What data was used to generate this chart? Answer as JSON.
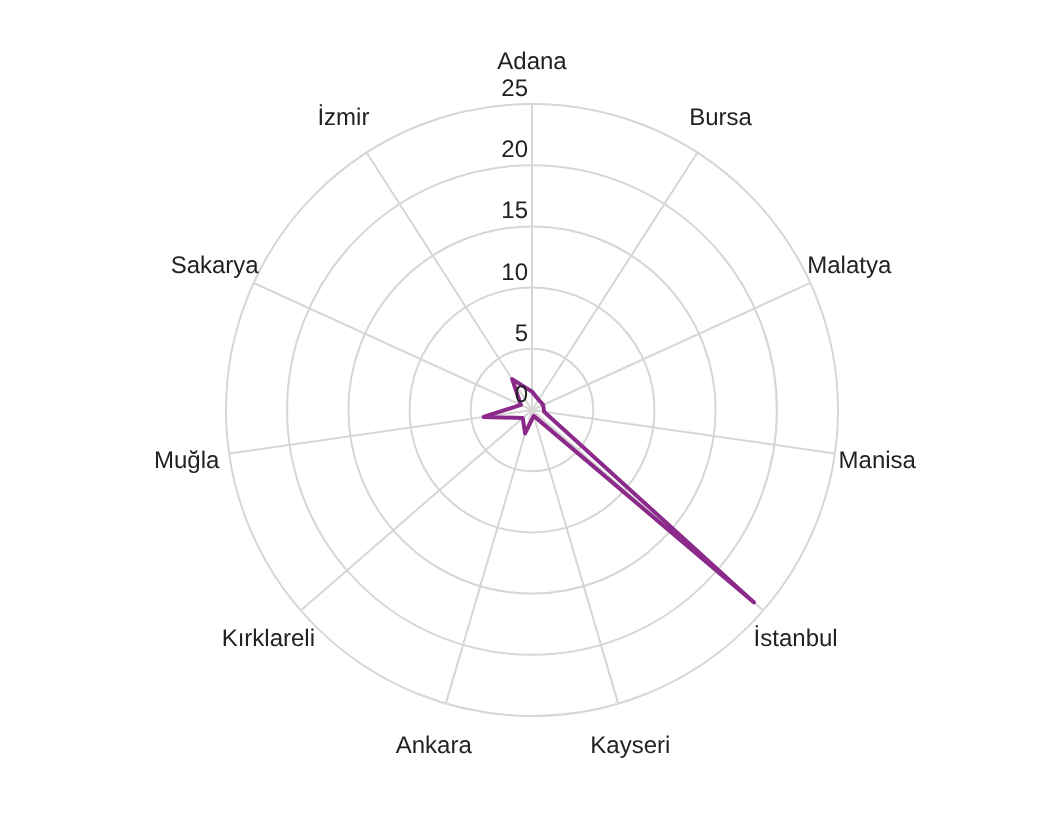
{
  "chart_data": {
    "type": "radar",
    "categories": [
      "Adana",
      "Bursa",
      "Malatya",
      "Manisa",
      "İstanbul",
      "Kayseri",
      "Ankara",
      "Kırklareli",
      "Muğla",
      "Sakarya",
      "İzmir"
    ],
    "series": [
      {
        "color": "#8b2a8b",
        "values": [
          1.5,
          1,
          1,
          1,
          24,
          0.5,
          2,
          1,
          4,
          1,
          3
        ]
      }
    ],
    "ylim": [
      0,
      25
    ],
    "yticks": [
      0,
      5,
      10,
      15,
      20,
      25
    ],
    "grid": true
  }
}
